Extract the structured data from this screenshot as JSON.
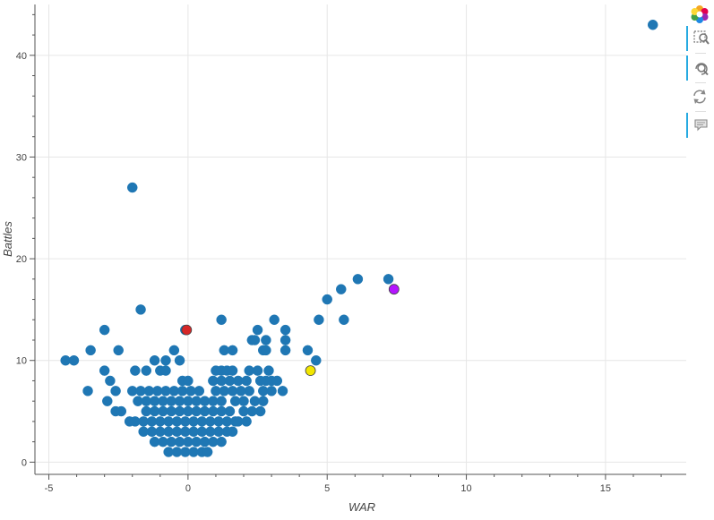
{
  "chart_data": {
    "type": "scatter",
    "xlabel": "WAR",
    "ylabel": "Battles",
    "xlim": [
      -5.5,
      17.9
    ],
    "ylim": [
      -1.2,
      45
    ],
    "xticks": [
      -5,
      0,
      5,
      10,
      15
    ],
    "yticks": [
      0,
      10,
      20,
      30,
      40
    ],
    "grid": true,
    "colors": {
      "main": "#1f77b4",
      "red": "#d62728",
      "yellow": "#f2e600",
      "purple": "#b414ff",
      "grid": "#e6e6e6",
      "axis": "#555555"
    },
    "points": [
      [
        16.7,
        43
      ],
      [
        -2.0,
        27
      ],
      [
        -1.7,
        15
      ],
      [
        7.4,
        17
      ],
      [
        7.2,
        18
      ],
      [
        6.1,
        18
      ],
      [
        5.5,
        17
      ],
      [
        5.0,
        16
      ],
      [
        4.7,
        14
      ],
      [
        5.6,
        14
      ],
      [
        -0.1,
        13
      ],
      [
        1.2,
        14
      ],
      [
        2.5,
        13
      ],
      [
        3.1,
        14
      ],
      [
        3.5,
        13
      ],
      [
        -3.0,
        13
      ],
      [
        -4.4,
        10
      ],
      [
        -4.1,
        10
      ],
      [
        -3.5,
        11
      ],
      [
        -2.5,
        11
      ],
      [
        -3.6,
        7
      ],
      [
        -3.0,
        9
      ],
      [
        -2.8,
        8
      ],
      [
        -2.6,
        7
      ],
      [
        -2.9,
        6
      ],
      [
        -2.6,
        5
      ],
      [
        -2.4,
        5
      ],
      [
        -2.1,
        4
      ],
      [
        -1.9,
        4
      ],
      [
        -1.5,
        9
      ],
      [
        -1.2,
        10
      ],
      [
        -1.0,
        9
      ],
      [
        -0.8,
        9
      ],
      [
        -0.8,
        10
      ],
      [
        -0.5,
        11
      ],
      [
        -0.3,
        10
      ],
      [
        -1.9,
        9
      ],
      [
        4.3,
        11
      ],
      [
        4.6,
        10
      ],
      [
        4.4,
        9
      ],
      [
        1.0,
        9
      ],
      [
        1.2,
        9
      ],
      [
        1.4,
        9
      ],
      [
        1.6,
        9
      ],
      [
        1.3,
        11
      ],
      [
        1.6,
        11
      ],
      [
        2.3,
        12
      ],
      [
        2.4,
        12
      ],
      [
        2.8,
        12
      ],
      [
        2.7,
        11
      ],
      [
        2.8,
        11
      ],
      [
        3.5,
        12
      ],
      [
        3.5,
        11
      ],
      [
        2.2,
        9
      ],
      [
        2.5,
        9
      ],
      [
        2.9,
        9
      ],
      [
        3.0,
        8
      ],
      [
        2.8,
        8
      ],
      [
        2.6,
        8
      ],
      [
        3.2,
        8
      ],
      [
        3.4,
        7
      ],
      [
        3.0,
        7
      ],
      [
        2.7,
        7
      ],
      [
        2.2,
        7
      ],
      [
        2.0,
        6
      ],
      [
        1.7,
        6
      ],
      [
        1.5,
        5
      ],
      [
        1.2,
        5
      ],
      [
        2.4,
        6
      ],
      [
        2.7,
        6
      ],
      [
        2.6,
        5
      ],
      [
        2.3,
        5
      ],
      [
        2.0,
        5
      ],
      [
        1.8,
        4
      ],
      [
        2.1,
        4
      ],
      [
        1.6,
        3
      ],
      [
        1.4,
        3
      ],
      [
        1.1,
        3
      ],
      [
        0.8,
        3
      ],
      [
        0.5,
        3
      ],
      [
        0.2,
        3
      ],
      [
        -0.1,
        3
      ],
      [
        -0.4,
        3
      ],
      [
        -0.7,
        3
      ],
      [
        -1.0,
        3
      ],
      [
        -1.3,
        3
      ],
      [
        -1.6,
        3
      ],
      [
        -1.6,
        4
      ],
      [
        -1.3,
        4
      ],
      [
        -1.0,
        4
      ],
      [
        -0.7,
        4
      ],
      [
        -0.4,
        4
      ],
      [
        -0.1,
        4
      ],
      [
        0.2,
        4
      ],
      [
        0.5,
        4
      ],
      [
        0.8,
        4
      ],
      [
        1.1,
        4
      ],
      [
        1.4,
        4
      ],
      [
        1.7,
        4
      ],
      [
        -1.5,
        5
      ],
      [
        -1.2,
        5
      ],
      [
        -0.9,
        5
      ],
      [
        -0.6,
        5
      ],
      [
        -0.3,
        5
      ],
      [
        0.0,
        5
      ],
      [
        0.3,
        5
      ],
      [
        0.6,
        5
      ],
      [
        0.9,
        5
      ],
      [
        -1.8,
        6
      ],
      [
        -1.5,
        6
      ],
      [
        -1.2,
        6
      ],
      [
        -0.9,
        6
      ],
      [
        -0.6,
        6
      ],
      [
        -0.3,
        6
      ],
      [
        0.0,
        6
      ],
      [
        0.3,
        6
      ],
      [
        0.6,
        6
      ],
      [
        0.9,
        6
      ],
      [
        1.2,
        6
      ],
      [
        -2.0,
        7
      ],
      [
        -1.7,
        7
      ],
      [
        -1.4,
        7
      ],
      [
        -1.1,
        7
      ],
      [
        -0.8,
        7
      ],
      [
        -0.5,
        7
      ],
      [
        -0.2,
        7
      ],
      [
        0.1,
        7
      ],
      [
        0.4,
        7
      ],
      [
        1.0,
        7
      ],
      [
        1.3,
        7
      ],
      [
        1.6,
        7
      ],
      [
        1.9,
        7
      ],
      [
        -0.2,
        8
      ],
      [
        0.0,
        8
      ],
      [
        0.9,
        8
      ],
      [
        1.2,
        8
      ],
      [
        1.5,
        8
      ],
      [
        1.8,
        8
      ],
      [
        2.1,
        8
      ],
      [
        -1.2,
        2
      ],
      [
        -0.9,
        2
      ],
      [
        -0.6,
        2
      ],
      [
        -0.3,
        2
      ],
      [
        0.0,
        2
      ],
      [
        0.3,
        2
      ],
      [
        0.6,
        2
      ],
      [
        0.9,
        2
      ],
      [
        1.2,
        2
      ],
      [
        -0.7,
        1
      ],
      [
        -0.4,
        1
      ],
      [
        -0.1,
        1
      ],
      [
        0.2,
        1
      ],
      [
        0.5,
        1
      ],
      [
        0.7,
        1
      ]
    ],
    "highlights": [
      {
        "x": -0.05,
        "y": 13,
        "color_key": "red"
      },
      {
        "x": 4.4,
        "y": 9,
        "color_key": "yellow"
      },
      {
        "x": 7.4,
        "y": 17,
        "color_key": "purple"
      }
    ]
  },
  "toolbar": {
    "items": [
      {
        "name": "bokeh-logo-icon",
        "active": false
      },
      {
        "name": "box-zoom-icon",
        "active": true
      },
      {
        "name": "wheel-zoom-icon",
        "active": true
      },
      {
        "name": "reset-icon",
        "active": false
      },
      {
        "name": "hover-icon",
        "active": true
      }
    ]
  }
}
